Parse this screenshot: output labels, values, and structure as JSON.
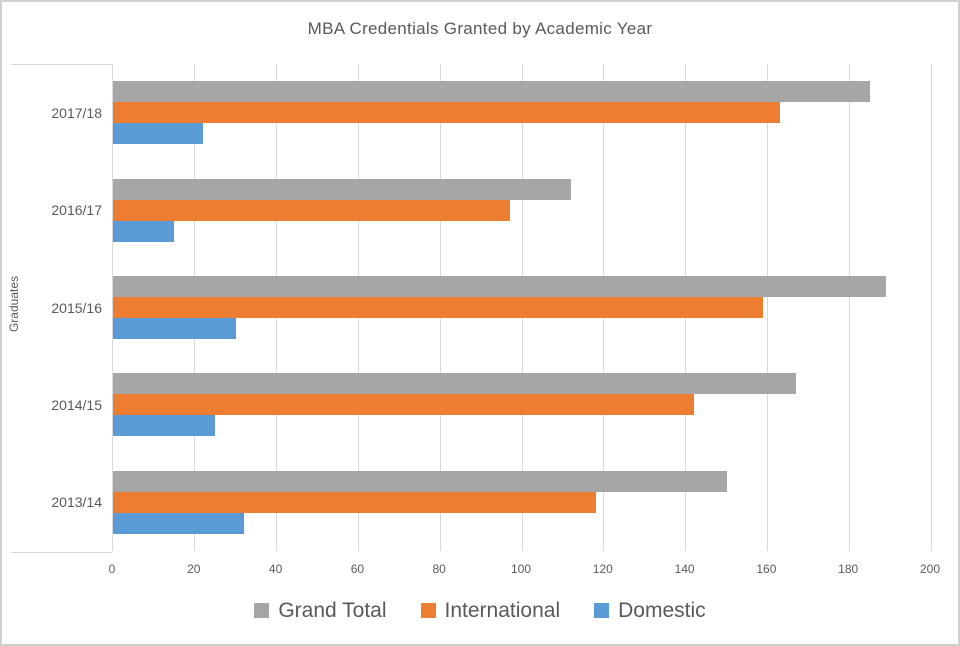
{
  "chart_data": {
    "type": "bar",
    "orientation": "horizontal",
    "title": "MBA Credentials Granted by Academic Year",
    "ylabel": "Graduates",
    "xlabel": "",
    "categories": [
      "2017/18",
      "2016/17",
      "2015/16",
      "2014/15",
      "2013/14"
    ],
    "series": [
      {
        "name": "Grand Total",
        "color": "#a6a6a6",
        "values": [
          185,
          112,
          189,
          167,
          150
        ]
      },
      {
        "name": "International",
        "color": "#ed7d31",
        "values": [
          163,
          97,
          159,
          142,
          118
        ]
      },
      {
        "name": "Domestic",
        "color": "#5b9bd5",
        "values": [
          22,
          15,
          30,
          25,
          32
        ]
      }
    ],
    "xlim": [
      0,
      200
    ],
    "xticks": [
      0,
      20,
      40,
      60,
      80,
      100,
      120,
      140,
      160,
      180,
      200
    ],
    "grid": true,
    "legend_position": "bottom"
  },
  "colors": {
    "text": "#595959",
    "gridline": "#d9d9d9",
    "frame_border": "#cfcfcf"
  }
}
